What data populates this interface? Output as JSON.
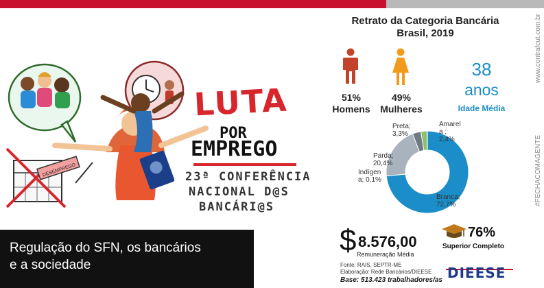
{
  "poster": {
    "title_luta": "LUTA",
    "title_por": "POR",
    "title_emprego": "EMPREGO",
    "conference_line1": "23ª CONFERÊNCIA",
    "conference_line2": "NACIONAL D@S",
    "conference_line3": "BANCÁRI@S",
    "sign_text": "DESEMPREGO"
  },
  "caption": {
    "line1": "Regulação do SFN, os bancários",
    "line2": "e a sociedade"
  },
  "infographic": {
    "title_line1": "Retrato da Categoria Bancária",
    "title_line2": "Brasil, 2019",
    "men_percent": "51%",
    "men_label": "Homens",
    "women_percent": "49%",
    "women_label": "Mulheres",
    "age_value": "38",
    "age_unit": "anos",
    "age_label": "Idade Média",
    "colors": {
      "men": "#c0432a",
      "women": "#f29a1b",
      "accent": "#1b8dc8"
    },
    "pie_labels": {
      "preta": [
        "Preta;",
        "3,3%"
      ],
      "amarela": [
        "Amarel",
        "a ;",
        "2,4%"
      ],
      "parda": [
        "Parda;",
        "20,4%"
      ],
      "indigena": [
        "Indígen",
        "a; 0,1%"
      ],
      "branca": [
        "Branca;",
        "72,7%"
      ]
    },
    "salary_value": "8.576,00",
    "salary_label": "Remuneração Média",
    "dollar_icon": "$",
    "education_value": "76%",
    "education_label": "Superior Completo",
    "source_line1": "Fonte: RAIS, SEPTR-ME",
    "source_line2": "Elaboração: Rede Bancários/DIEESE",
    "base": "Base: 513.423 trabalhadores/as",
    "org_logo": "DIEESE"
  },
  "chart_data": {
    "type": "pie",
    "style": "donut",
    "categories": [
      "Branca",
      "Parda",
      "Preta",
      "Amarela",
      "Indígena"
    ],
    "values": [
      72.7,
      20.4,
      3.3,
      2.4,
      0.1
    ],
    "colors": [
      "#1b8dc8",
      "#a8b3bd",
      "#6f7a84",
      "#8ac06a",
      "#5a6a78"
    ]
  },
  "side": {
    "url": "www.contrafcut.com.br",
    "tag": "#FECHACOMAGENTE"
  }
}
